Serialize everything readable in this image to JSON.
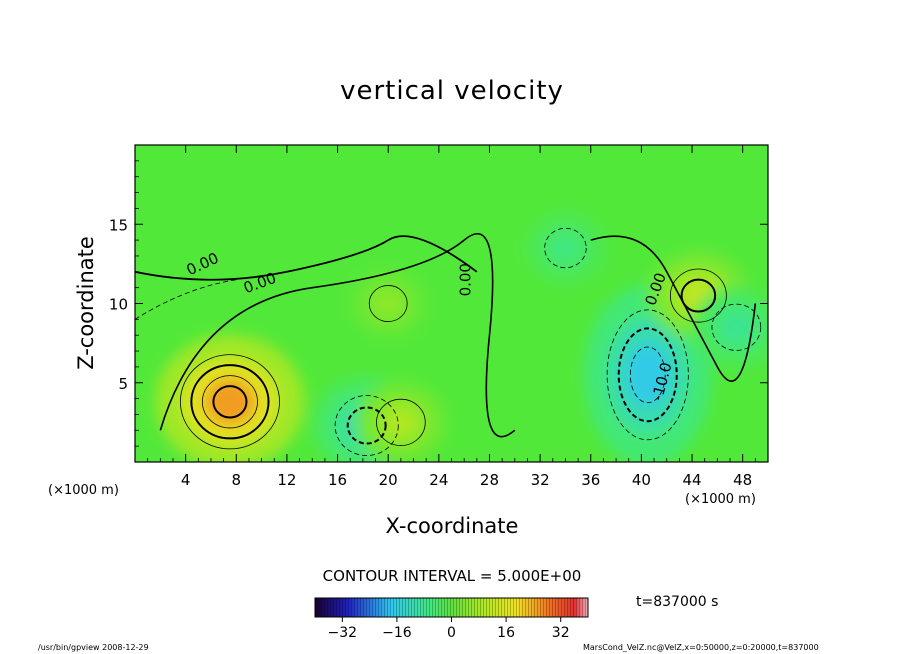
{
  "chart_data": {
    "type": "heatmap",
    "title": "vertical velocity",
    "xlabel": "X-coordinate",
    "ylabel": "Z-coordinate",
    "x_unit": "(×1000 m)",
    "xlim": [
      0,
      50
    ],
    "ylim": [
      0,
      20
    ],
    "x_ticks": [
      "4",
      "8",
      "12",
      "16",
      "20",
      "24",
      "28",
      "32",
      "36",
      "40",
      "44",
      "48"
    ],
    "y_ticks": [
      "5",
      "10",
      "15"
    ],
    "contour_interval": "CONTOUR INTERVAL = 5.000E+00",
    "contour_labels": [
      "0.00",
      "0.00",
      "0.00",
      "0.00",
      "-10.0"
    ],
    "colorbar": {
      "range": [
        -40,
        40
      ],
      "ticks": [
        "−32",
        "−16",
        "0",
        "16",
        "32"
      ],
      "tick_values": [
        -32,
        -16,
        0,
        16,
        32
      ]
    },
    "features": [
      {
        "x": 7.5,
        "z": 3.8,
        "value": 22
      },
      {
        "x": 18.3,
        "z": 2.3,
        "value": -12
      },
      {
        "x": 21.0,
        "z": 2.5,
        "value": 8
      },
      {
        "x": 40.5,
        "z": 5.5,
        "value": -17
      },
      {
        "x": 44.5,
        "z": 10.5,
        "value": 10
      },
      {
        "x": 47.5,
        "z": 8.5,
        "value": -8
      },
      {
        "x": 34.0,
        "z": 13.5,
        "value": -6
      },
      {
        "x": 20.0,
        "z": 10.0,
        "value": 5
      }
    ],
    "time": "t=837000 s"
  },
  "footer": {
    "left": "/usr/bin/gpview   2008-12-29",
    "right": "MarsCond_VelZ.nc@VelZ,x=0:50000,z=0:20000,t=837000"
  }
}
